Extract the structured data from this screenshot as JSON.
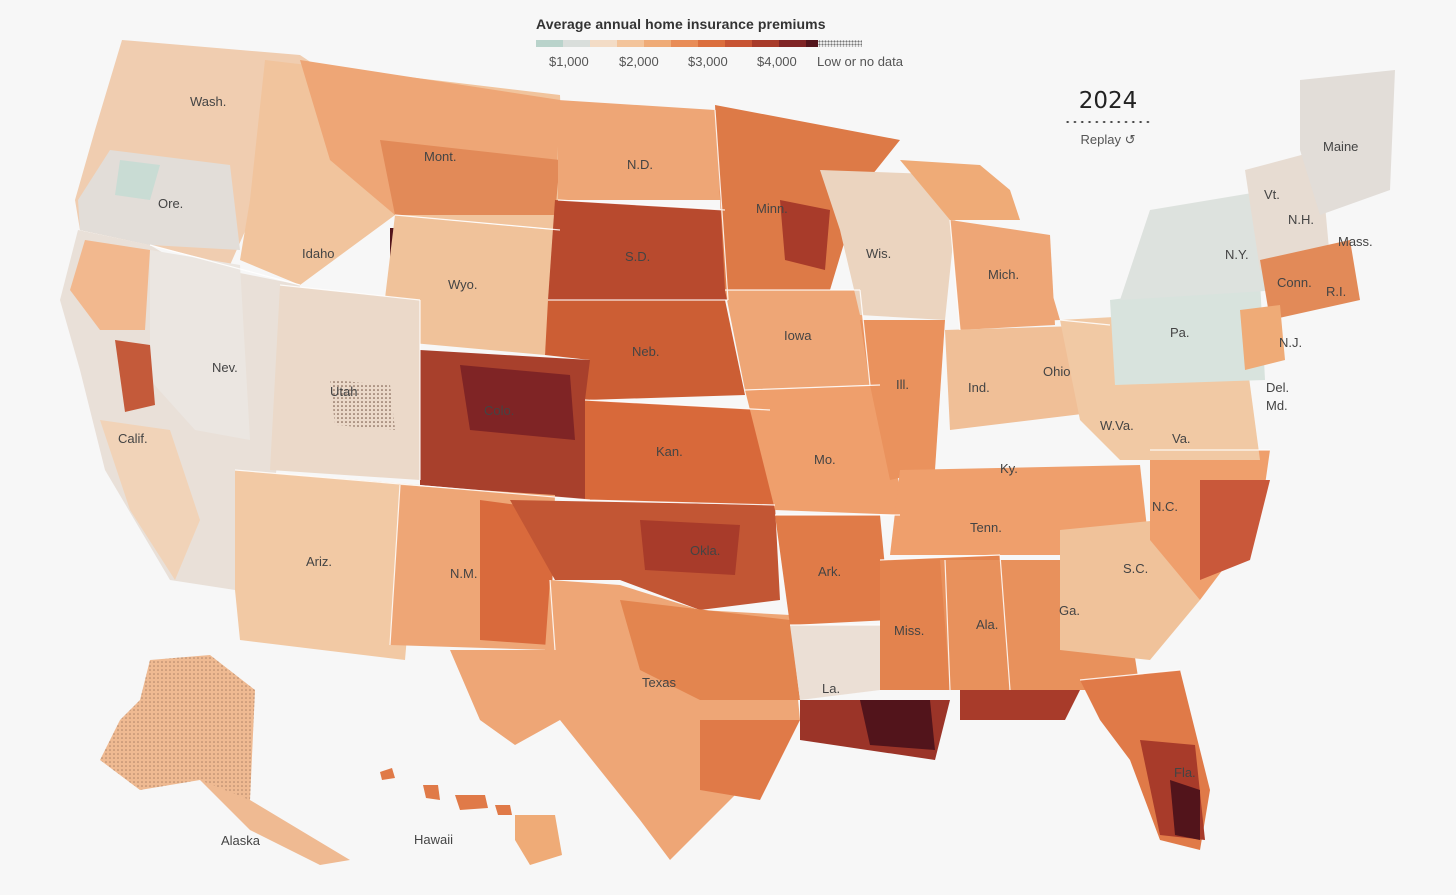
{
  "legend": {
    "title": "Average annual home insurance premiums",
    "colors": [
      "#b9d3cb",
      "#d9dedb",
      "#f3dcc6",
      "#f3c49b",
      "#efab77",
      "#e88c57",
      "#db6e3d",
      "#c75433",
      "#a83b2a",
      "#7f2425",
      "#52141b"
    ],
    "ticks": [
      "$1,000",
      "$2,000",
      "$3,000",
      "$4,000"
    ],
    "no_data_label": "Low or no data"
  },
  "year_control": {
    "year": "2024",
    "replay_label": "Replay ↺"
  },
  "state_labels": {
    "wash": "Wash.",
    "ore": "Ore.",
    "calif": "Calif.",
    "nev": "Nev.",
    "idaho": "Idaho",
    "mont": "Mont.",
    "wyo": "Wyo.",
    "utah": "Utah",
    "colo": "Colo.",
    "ariz": "Ariz.",
    "nm": "N.M.",
    "nd": "N.D.",
    "sd": "S.D.",
    "neb": "Neb.",
    "kan": "Kan.",
    "okla": "Okla.",
    "texas": "Texas",
    "minn": "Minn.",
    "iowa": "Iowa",
    "mo": "Mo.",
    "ark": "Ark.",
    "la": "La.",
    "wis": "Wis.",
    "ill": "Ill.",
    "mich": "Mich.",
    "ind": "Ind.",
    "ohio": "Ohio",
    "ky": "Ky.",
    "tenn": "Tenn.",
    "miss": "Miss.",
    "ala": "Ala.",
    "ga": "Ga.",
    "fla": "Fla.",
    "sc": "S.C.",
    "nc": "N.C.",
    "va": "Va.",
    "wva": "W.Va.",
    "pa": "Pa.",
    "ny": "N.Y.",
    "vt": "Vt.",
    "nh": "N.H.",
    "maine": "Maine",
    "mass": "Mass.",
    "conn": "Conn.",
    "ri": "R.I.",
    "nj": "N.J.",
    "del": "Del.",
    "md": "Md.",
    "alaska": "Alaska",
    "hawaii": "Hawaii"
  }
}
